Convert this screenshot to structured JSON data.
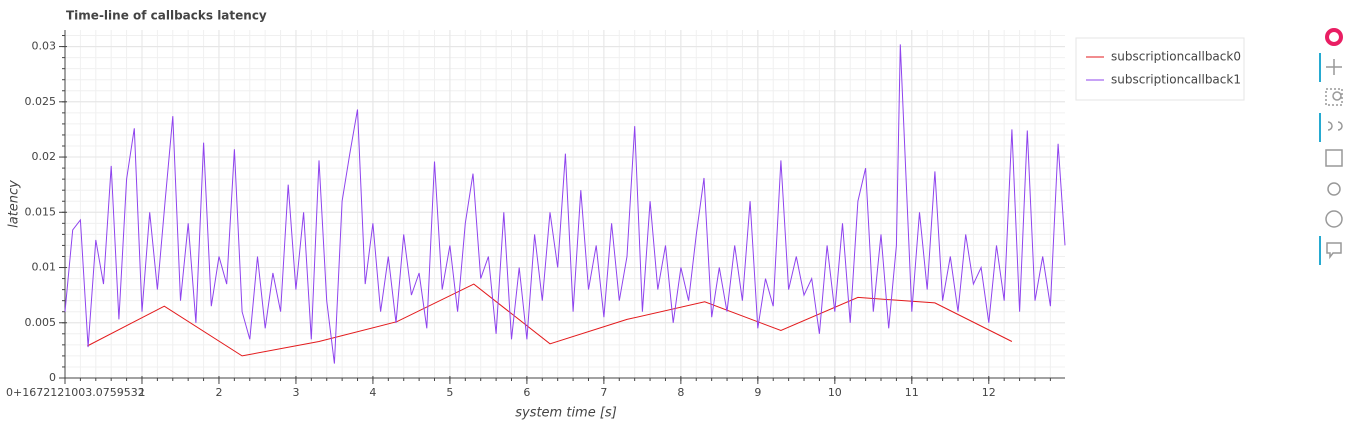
{
  "chart_data": {
    "type": "line",
    "title": "Time-line of callbacks latency",
    "x_label": "system time [s]",
    "y_label": "latency",
    "xlim": [
      0,
      12.99
    ],
    "ylim": [
      0,
      0.0315
    ],
    "xticks": [
      {
        "value": 0,
        "label": "0+1672121003.0759532"
      },
      1,
      2,
      3,
      4,
      5,
      6,
      7,
      8,
      9,
      10,
      11,
      12
    ],
    "yticks": [
      0,
      0.005,
      0.01,
      0.015,
      0.02,
      0.025,
      0.03
    ],
    "grid": true,
    "minor_divisions": 5,
    "legend": "top-right-outside",
    "series": [
      {
        "name": "subscriptioncallback0",
        "color": "#e31a1c",
        "x": [
          0.29,
          1.29,
          2.3,
          3.3,
          4.31,
          5.31,
          6.3,
          7.3,
          8.31,
          9.3,
          10.3,
          11.3,
          12.3
        ],
        "values": [
          0.0029,
          0.0065,
          0.002,
          0.0033,
          0.0051,
          0.0085,
          0.0031,
          0.0053,
          0.0069,
          0.0043,
          0.0073,
          0.0068,
          0.0033
        ]
      },
      {
        "name": "subscriptioncallback1",
        "color": "#8f44ee",
        "x": [
          0,
          0.1,
          0.2,
          0.3,
          0.4,
          0.5,
          0.6,
          0.7,
          0.8,
          0.9,
          1,
          1.1,
          1.2,
          1.3,
          1.4,
          1.5,
          1.6,
          1.7,
          1.8,
          1.9,
          2,
          2.1,
          2.2,
          2.3,
          2.4,
          2.5,
          2.6,
          2.7,
          2.8,
          2.9,
          3,
          3.1,
          3.2,
          3.3,
          3.4,
          3.5,
          3.6,
          3.7,
          3.8,
          3.9,
          4,
          4.1,
          4.2,
          4.3,
          4.4,
          4.5,
          4.6,
          4.7,
          4.8,
          4.9,
          5,
          5.1,
          5.2,
          5.3,
          5.4,
          5.5,
          5.6,
          5.7,
          5.8,
          5.9,
          6,
          6.1,
          6.2,
          6.3,
          6.4,
          6.5,
          6.6,
          6.7,
          6.8,
          6.9,
          7,
          7.1,
          7.2,
          7.3,
          7.4,
          7.5,
          7.6,
          7.7,
          7.8,
          7.9,
          8,
          8.1,
          8.2,
          8.3,
          8.4,
          8.5,
          8.6,
          8.7,
          8.8,
          8.9,
          9,
          9.1,
          9.2,
          9.3,
          9.4,
          9.5,
          9.6,
          9.7,
          9.8,
          9.9,
          10,
          10.1,
          10.2,
          10.3,
          10.4,
          10.5,
          10.6,
          10.7,
          10.8,
          10.85,
          11,
          11.1,
          11.2,
          11.3,
          11.4,
          11.5,
          11.6,
          11.7,
          11.8,
          11.9,
          12,
          12.1,
          12.2,
          12.3,
          12.4,
          12.5,
          12.6,
          12.7,
          12.8,
          12.9,
          12.99
        ],
        "values": [
          0.006,
          0.0134,
          0.0143,
          0.0028,
          0.0125,
          0.0085,
          0.0192,
          0.0053,
          0.018,
          0.0226,
          0.006,
          0.015,
          0.008,
          0.016,
          0.0237,
          0.007,
          0.014,
          0.005,
          0.0213,
          0.0065,
          0.011,
          0.0085,
          0.0207,
          0.006,
          0.0035,
          0.011,
          0.0045,
          0.0095,
          0.006,
          0.0175,
          0.008,
          0.015,
          0.0035,
          0.0197,
          0.007,
          0.0013,
          0.016,
          0.0203,
          0.0243,
          0.0085,
          0.014,
          0.006,
          0.011,
          0.005,
          0.013,
          0.0075,
          0.0095,
          0.0045,
          0.0196,
          0.008,
          0.012,
          0.006,
          0.014,
          0.0185,
          0.009,
          0.011,
          0.004,
          0.015,
          0.0035,
          0.01,
          0.0035,
          0.013,
          0.007,
          0.015,
          0.01,
          0.0203,
          0.006,
          0.017,
          0.008,
          0.012,
          0.0055,
          0.014,
          0.007,
          0.011,
          0.0228,
          0.006,
          0.016,
          0.008,
          0.012,
          0.005,
          0.01,
          0.007,
          0.013,
          0.0181,
          0.0055,
          0.01,
          0.006,
          0.012,
          0.007,
          0.016,
          0.0045,
          0.009,
          0.0065,
          0.0197,
          0.008,
          0.011,
          0.0075,
          0.009,
          0.004,
          0.012,
          0.006,
          0.014,
          0.005,
          0.016,
          0.019,
          0.006,
          0.013,
          0.0045,
          0.012,
          0.0302,
          0.006,
          0.015,
          0.008,
          0.0187,
          0.007,
          0.011,
          0.006,
          0.013,
          0.0085,
          0.01,
          0.005,
          0.012,
          0.007,
          0.0225,
          0.006,
          0.0224,
          0.007,
          0.011,
          0.0065,
          0.0212,
          0.012
        ]
      }
    ]
  }
}
